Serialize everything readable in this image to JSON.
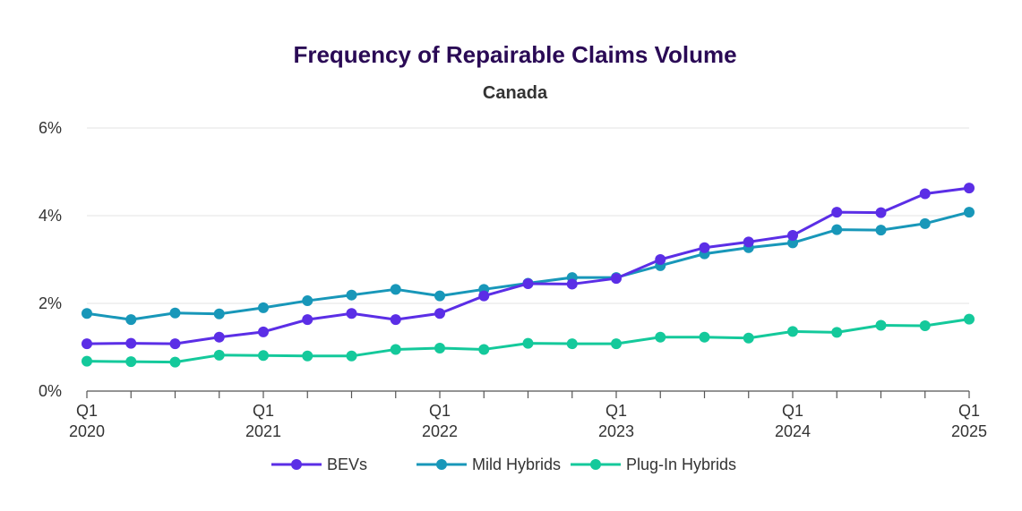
{
  "chart_data": {
    "type": "line",
    "title": "Frequency of Repairable Claims Volume",
    "subtitle": "Canada",
    "xlabel": "",
    "ylabel": "",
    "ylim": [
      0,
      6
    ],
    "y_ticks": [
      "0%",
      "2%",
      "4%",
      "6%"
    ],
    "y_tick_values": [
      0,
      2,
      4,
      6
    ],
    "x_categories": [
      "Q1 2020",
      "Q2 2020",
      "Q3 2020",
      "Q4 2020",
      "Q1 2021",
      "Q2 2021",
      "Q3 2021",
      "Q4 2021",
      "Q1 2022",
      "Q2 2022",
      "Q3 2022",
      "Q4 2022",
      "Q1 2023",
      "Q2 2023",
      "Q3 2023",
      "Q4 2023",
      "Q1 2024",
      "Q2 2024",
      "Q3 2024",
      "Q4 2024",
      "Q1 2025"
    ],
    "x_tick_labels": [
      {
        "index": 0,
        "line1": "Q1",
        "line2": "2020"
      },
      {
        "index": 4,
        "line1": "Q1",
        "line2": "2021"
      },
      {
        "index": 8,
        "line1": "Q1",
        "line2": "2022"
      },
      {
        "index": 12,
        "line1": "Q1",
        "line2": "2023"
      },
      {
        "index": 16,
        "line1": "Q1",
        "line2": "2024"
      },
      {
        "index": 20,
        "line1": "Q1",
        "line2": "2025"
      }
    ],
    "grid": true,
    "legend_position": "bottom-center",
    "series": [
      {
        "name": "BEVs",
        "color": "#5b2ee6",
        "values": [
          1.08,
          1.09,
          1.08,
          1.23,
          1.35,
          1.63,
          1.77,
          1.63,
          1.77,
          2.17,
          2.45,
          2.44,
          2.57,
          3.0,
          3.27,
          3.4,
          3.55,
          4.08,
          4.07,
          4.5,
          4.63
        ]
      },
      {
        "name": "Mild Hybrids",
        "color": "#1897b9",
        "values": [
          1.77,
          1.63,
          1.78,
          1.76,
          1.9,
          2.06,
          2.19,
          2.32,
          2.17,
          2.32,
          2.46,
          2.59,
          2.59,
          2.86,
          3.13,
          3.27,
          3.38,
          3.68,
          3.67,
          3.82,
          4.08
        ]
      },
      {
        "name": "Plug-In Hybrids",
        "color": "#14c99b",
        "values": [
          0.68,
          0.67,
          0.66,
          0.82,
          0.81,
          0.8,
          0.8,
          0.95,
          0.98,
          0.95,
          1.09,
          1.08,
          1.08,
          1.23,
          1.23,
          1.21,
          1.36,
          1.34,
          1.5,
          1.49,
          1.64
        ]
      }
    ]
  }
}
